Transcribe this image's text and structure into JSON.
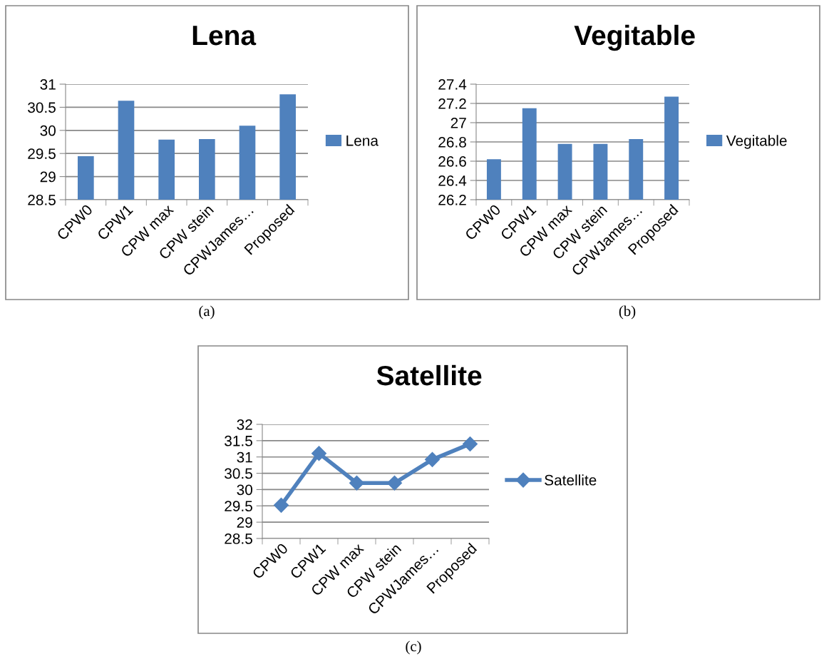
{
  "chart_data": [
    {
      "type": "bar",
      "title": "Lena",
      "categories": [
        "CPW0",
        "CPW1",
        "CPW max",
        "CPW stein",
        "CPWJames…",
        "Proposed"
      ],
      "series": [
        {
          "name": "Lena",
          "color": "#4f81bd",
          "values": [
            29.44,
            30.64,
            29.8,
            29.81,
            30.1,
            30.78
          ]
        }
      ],
      "ylim": [
        28.5,
        31
      ],
      "yticks": [
        28.5,
        29,
        29.5,
        30,
        30.5,
        31
      ],
      "grid": "y",
      "legend": "right",
      "annotations": [
        "(a)"
      ]
    },
    {
      "type": "bar",
      "title": "Vegitable",
      "categories": [
        "CPW0",
        "CPW1",
        "CPW max",
        "CPW stein",
        "CPWJames…",
        "Proposed"
      ],
      "series": [
        {
          "name": "Vegitable",
          "color": "#4f81bd",
          "values": [
            26.62,
            27.15,
            26.78,
            26.78,
            26.83,
            27.27
          ]
        }
      ],
      "ylim": [
        26.2,
        27.4
      ],
      "yticks": [
        26.2,
        26.4,
        26.6,
        26.8,
        27,
        27.2,
        27.4
      ],
      "grid": "y",
      "legend": "right",
      "annotations": [
        "(b)"
      ]
    },
    {
      "type": "line",
      "title": "Satellite",
      "categories": [
        "CPW0",
        "CPW1",
        "CPW max",
        "CPW stein",
        "CPWJames…",
        "Proposed"
      ],
      "series": [
        {
          "name": "Satellite",
          "color": "#4f81bd",
          "values": [
            29.52,
            31.11,
            30.2,
            30.2,
            30.92,
            31.4
          ]
        }
      ],
      "ylim": [
        28.5,
        32
      ],
      "yticks": [
        28.5,
        29,
        29.5,
        30,
        30.5,
        31,
        31.5,
        32
      ],
      "grid": "y",
      "legend": "right",
      "marker": "diamond",
      "line_style": "solid",
      "annotations": [
        "(c)"
      ]
    }
  ]
}
